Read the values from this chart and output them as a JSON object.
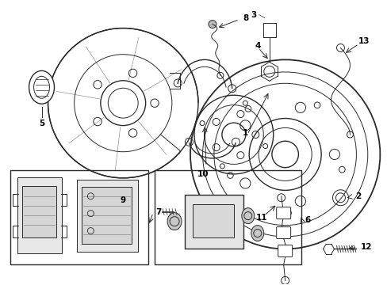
{
  "bg_color": "#ffffff",
  "line_color": "#2a2a2a",
  "fig_width": 4.89,
  "fig_height": 3.6,
  "dpi": 100
}
